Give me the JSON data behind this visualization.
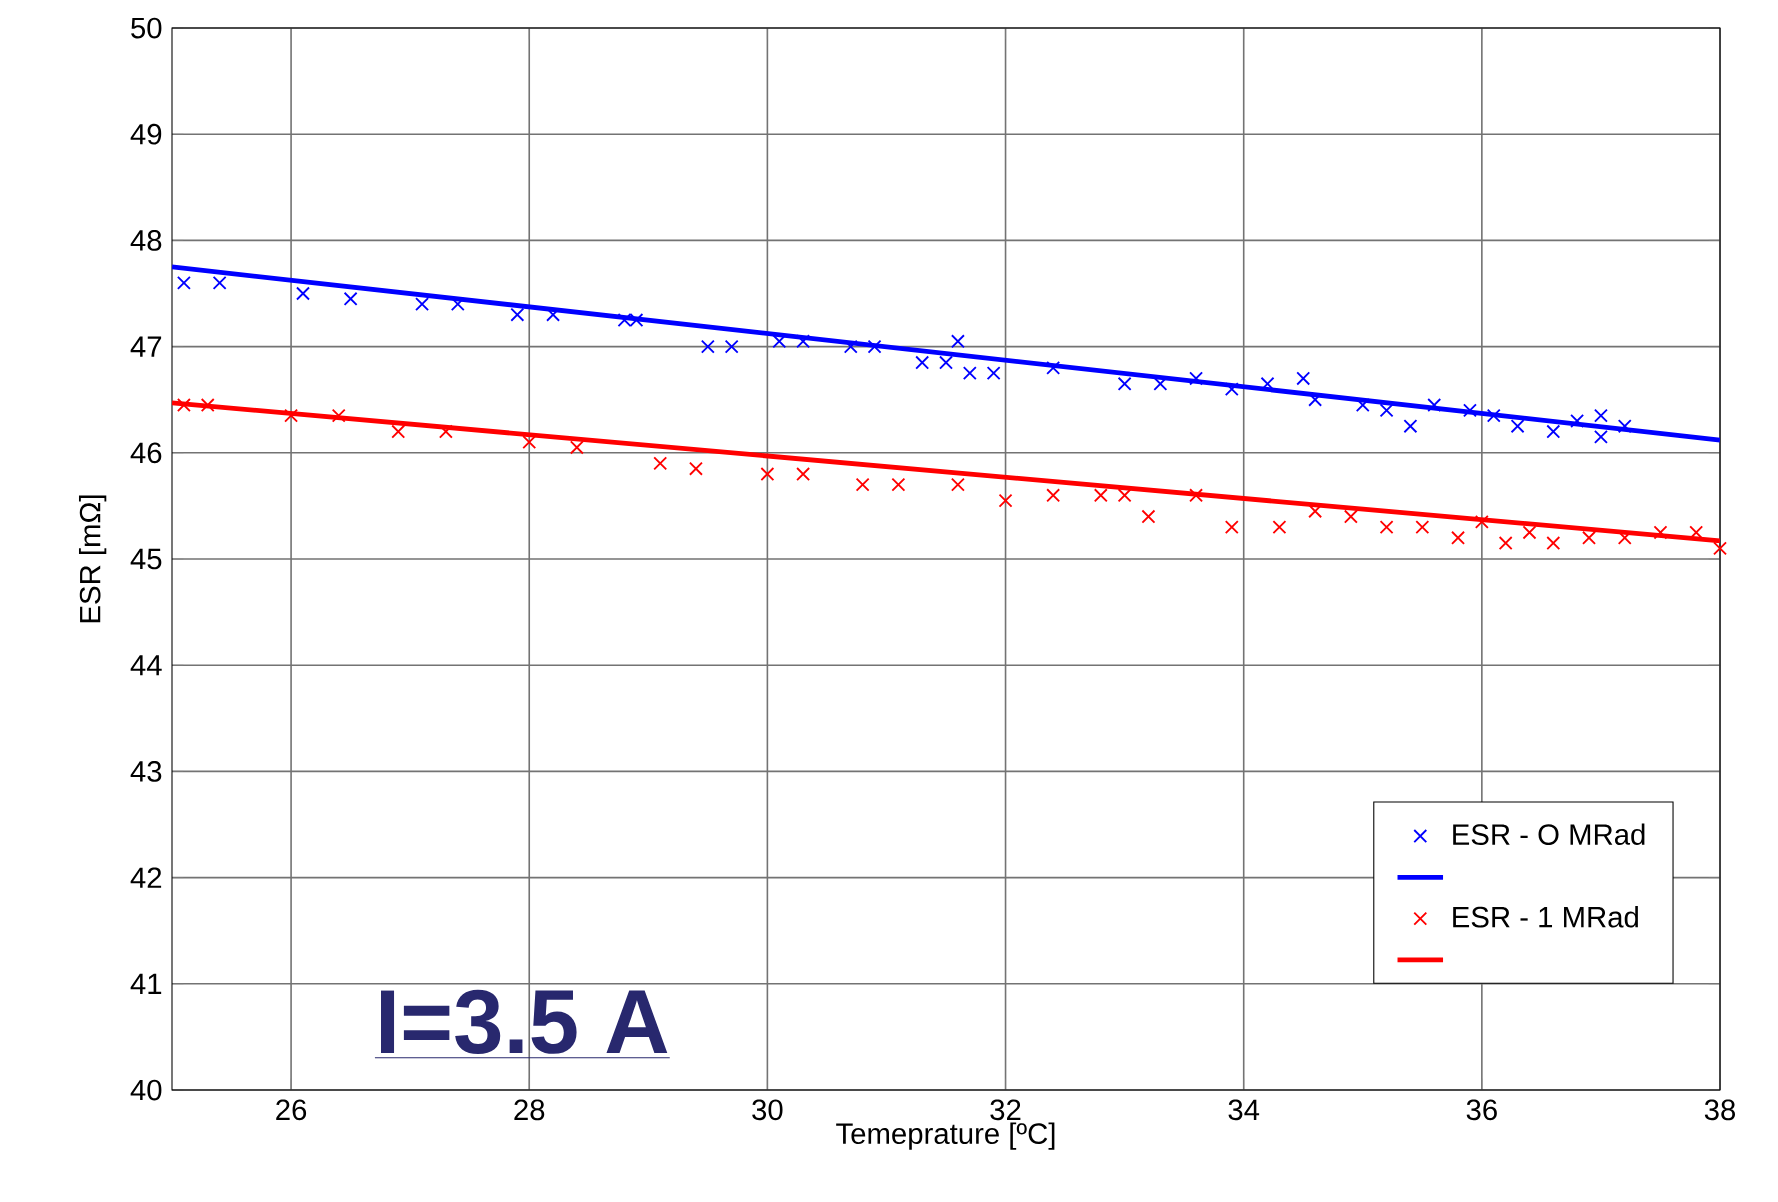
{
  "chart_data": {
    "type": "scatter",
    "xlabel": "Temeprature [ºC]",
    "ylabel": "ESR [mΩ]",
    "annotations": [
      "I=3.5 A"
    ],
    "xlim": [
      25,
      38
    ],
    "xticks": [
      26,
      28,
      30,
      32,
      34,
      36,
      38
    ],
    "ylim": [
      40,
      50
    ],
    "yticks": [
      40,
      41,
      42,
      43,
      44,
      45,
      46,
      47,
      48,
      49,
      50
    ],
    "grid": true,
    "legend": "bottom right",
    "series": [
      {
        "name": "ESR - O MRad",
        "marker": "cross",
        "color": "#0000ff",
        "x": [
          25.1,
          25.4,
          26.1,
          26.5,
          27.1,
          27.4,
          27.9,
          28.2,
          28.8,
          28.9,
          29.5,
          29.7,
          30.1,
          30.3,
          30.7,
          30.9,
          31.3,
          31.5,
          31.6,
          31.7,
          31.9,
          32.4,
          33.0,
          33.3,
          33.6,
          33.9,
          34.2,
          34.5,
          34.6,
          35.0,
          35.2,
          35.4,
          35.6,
          35.9,
          36.1,
          36.3,
          36.6,
          36.8,
          37.0,
          37.0,
          37.2
        ],
        "values": [
          47.6,
          47.6,
          47.5,
          47.45,
          47.4,
          47.4,
          47.3,
          47.3,
          47.25,
          47.25,
          47.0,
          47.0,
          47.05,
          47.05,
          47.0,
          47.0,
          46.85,
          46.85,
          47.05,
          46.75,
          46.75,
          46.8,
          46.65,
          46.65,
          46.7,
          46.6,
          46.65,
          46.7,
          46.5,
          46.45,
          46.4,
          46.25,
          46.45,
          46.4,
          46.35,
          46.25,
          46.2,
          46.3,
          46.35,
          46.15,
          46.25
        ]
      },
      {
        "type": "line",
        "marker": "none",
        "line_style": "solid",
        "color": "#0000ff",
        "x": [
          25,
          38
        ],
        "values": [
          47.75,
          46.12
        ]
      },
      {
        "name": "ESR - 1 MRad",
        "marker": "cross",
        "color": "#ff0000",
        "x": [
          25.1,
          25.3,
          26.0,
          26.4,
          26.9,
          27.3,
          28.0,
          28.4,
          29.1,
          29.4,
          30.0,
          30.3,
          30.8,
          31.1,
          31.6,
          32.0,
          32.4,
          32.8,
          33.0,
          33.2,
          33.6,
          33.9,
          34.3,
          34.6,
          34.9,
          35.2,
          35.5,
          35.8,
          36.0,
          36.2,
          36.4,
          36.6,
          36.9,
          37.2,
          37.5,
          37.8,
          38.0
        ],
        "values": [
          46.45,
          46.45,
          46.35,
          46.35,
          46.2,
          46.2,
          46.1,
          46.05,
          45.9,
          45.85,
          45.8,
          45.8,
          45.7,
          45.7,
          45.7,
          45.55,
          45.6,
          45.6,
          45.6,
          45.4,
          45.6,
          45.3,
          45.3,
          45.45,
          45.4,
          45.3,
          45.3,
          45.2,
          45.35,
          45.15,
          45.25,
          45.15,
          45.2,
          45.2,
          45.25,
          45.25,
          45.1
        ]
      },
      {
        "type": "line",
        "marker": "none",
        "line_style": "solid",
        "color": "#ff0000",
        "x": [
          25,
          38
        ],
        "values": [
          46.47,
          45.17
        ]
      }
    ]
  }
}
